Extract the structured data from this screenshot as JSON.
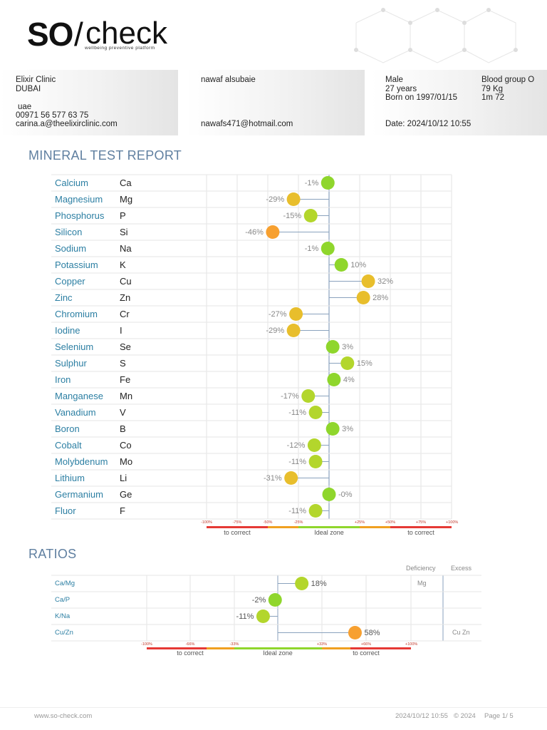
{
  "logo": {
    "brand_left": "SO",
    "brand_slash": "/",
    "brand_right": "check",
    "tagline": "wellbeing preventive platform"
  },
  "clinic": {
    "name": "Elixir Clinic",
    "city": "DUBAI",
    "country": "uae",
    "phone": "00971 56 577 63 75",
    "email": "carina.a@theelixirclinic.com"
  },
  "patient": {
    "name": "nawaf alsubaie",
    "email": "nawafs471@hotmail.com"
  },
  "details": {
    "sex": "Male",
    "age": "27 years",
    "born": "Born on 1997/01/15",
    "blood": "Blood group O",
    "weight": "79 Kg",
    "height": "1m 72",
    "date": "Date: 2024/10/12 10:55"
  },
  "minerals_title": "MINERAL TEST REPORT",
  "ratios_title": "RATIOS",
  "colors": {
    "green": "#8fd62c",
    "yellowgreen": "#b3d62c",
    "yellow": "#e8be2c",
    "orange": "#f7a030",
    "red": "#e53935",
    "title": "#5f7fa0",
    "name": "#2c7fa3"
  },
  "chart_data": [
    {
      "type": "scatter",
      "title": "MINERAL TEST REPORT",
      "xlim": [
        -100,
        100
      ],
      "axis_ticks": [
        "-100%",
        "-75%",
        "-50%",
        "-25%",
        "+25%",
        "+50%",
        "+75%",
        "+100%"
      ],
      "zones": [
        "to correct",
        "Ideal zone",
        "to correct"
      ],
      "rows": [
        {
          "name": "Calcium",
          "symbol": "Ca",
          "value": -1,
          "label": "-1%",
          "color": "green"
        },
        {
          "name": "Magnesium",
          "symbol": "Mg",
          "value": -29,
          "label": "-29%",
          "color": "yellow"
        },
        {
          "name": "Phosphorus",
          "symbol": "P",
          "value": -15,
          "label": "-15%",
          "color": "yellowgreen"
        },
        {
          "name": "Silicon",
          "symbol": "Si",
          "value": -46,
          "label": "-46%",
          "color": "orange"
        },
        {
          "name": "Sodium",
          "symbol": "Na",
          "value": -1,
          "label": "-1%",
          "color": "green"
        },
        {
          "name": "Potassium",
          "symbol": "K",
          "value": 10,
          "label": "10%",
          "color": "green"
        },
        {
          "name": "Copper",
          "symbol": "Cu",
          "value": 32,
          "label": "32%",
          "color": "yellow"
        },
        {
          "name": "Zinc",
          "symbol": "Zn",
          "value": 28,
          "label": "28%",
          "color": "yellow"
        },
        {
          "name": "Chromium",
          "symbol": "Cr",
          "value": -27,
          "label": "-27%",
          "color": "yellow"
        },
        {
          "name": "Iodine",
          "symbol": "I",
          "value": -29,
          "label": "-29%",
          "color": "yellow"
        },
        {
          "name": "Selenium",
          "symbol": "Se",
          "value": 3,
          "label": "3%",
          "color": "green"
        },
        {
          "name": "Sulphur",
          "symbol": "S",
          "value": 15,
          "label": "15%",
          "color": "yellowgreen"
        },
        {
          "name": "Iron",
          "symbol": "Fe",
          "value": 4,
          "label": "4%",
          "color": "green"
        },
        {
          "name": "Manganese",
          "symbol": "Mn",
          "value": -17,
          "label": "-17%",
          "color": "yellowgreen"
        },
        {
          "name": "Vanadium",
          "symbol": "V",
          "value": -11,
          "label": "-11%",
          "color": "yellowgreen"
        },
        {
          "name": "Boron",
          "symbol": "B",
          "value": 3,
          "label": "3%",
          "color": "green"
        },
        {
          "name": "Cobalt",
          "symbol": "Co",
          "value": -12,
          "label": "-12%",
          "color": "yellowgreen"
        },
        {
          "name": "Molybdenum",
          "symbol": "Mo",
          "value": -11,
          "label": "-11%",
          "color": "yellowgreen"
        },
        {
          "name": "Lithium",
          "symbol": "Li",
          "value": -31,
          "label": "-31%",
          "color": "yellow"
        },
        {
          "name": "Germanium",
          "symbol": "Ge",
          "value": 0,
          "label": "-0%",
          "color": "green"
        },
        {
          "name": "Fluor",
          "symbol": "F",
          "value": -11,
          "label": "-11%",
          "color": "yellowgreen"
        }
      ]
    },
    {
      "type": "scatter",
      "title": "RATIOS",
      "xlim": [
        -100,
        100
      ],
      "axis_ticks": [
        "-100%",
        "-66%",
        "-33%",
        "+33%",
        "+66%",
        "+100%"
      ],
      "zones": [
        "to correct",
        "Ideal zone",
        "to correct"
      ],
      "headers": {
        "deficiency": "Deficiency",
        "excess": "Excess"
      },
      "rows": [
        {
          "name": "Ca/Mg",
          "value": 18,
          "label": "18%",
          "color": "yellowgreen",
          "deficiency": "Mg",
          "excess": ""
        },
        {
          "name": "Ca/P",
          "value": -2,
          "label": "-2%",
          "color": "green",
          "deficiency": "",
          "excess": ""
        },
        {
          "name": "K/Na",
          "value": -11,
          "label": "-11%",
          "color": "yellowgreen",
          "deficiency": "",
          "excess": ""
        },
        {
          "name": "Cu/Zn",
          "value": 58,
          "label": "58%",
          "color": "orange",
          "deficiency": "",
          "excess": "Cu Zn"
        }
      ]
    }
  ],
  "footer": {
    "website": "www.so-check.com",
    "timestamp": "2024/10/12 10:55",
    "copyright": "© 2024",
    "page": "Page 1/ 5"
  }
}
